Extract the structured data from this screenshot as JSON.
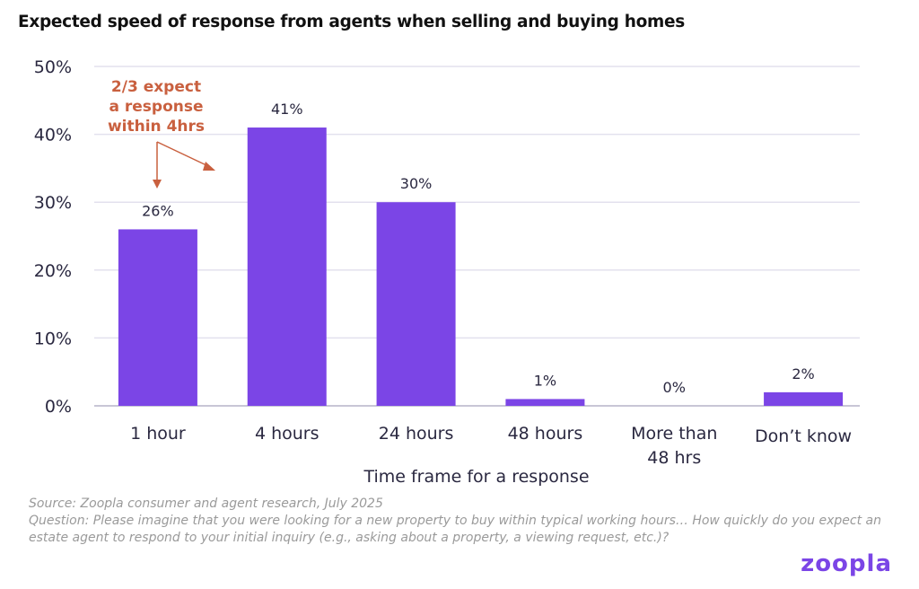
{
  "title": "Expected speed of response from agents when selling and buying homes",
  "chart_data": {
    "type": "bar",
    "title": "Expected speed of response from agents when selling and buying homes",
    "categories": [
      [
        "1 hour"
      ],
      [
        "4 hours"
      ],
      [
        "24 hours"
      ],
      [
        "48 hours"
      ],
      [
        "More than",
        "48 hrs"
      ],
      [
        "Don’t know"
      ]
    ],
    "values": [
      26,
      41,
      30,
      1,
      0,
      2
    ],
    "data_labels": [
      "26%",
      "41%",
      "30%",
      "1%",
      "0%",
      "2%"
    ],
    "xlabel": "Time frame for a response",
    "ylabel": "",
    "ylim": [
      0,
      50
    ],
    "yticks": [
      0,
      10,
      20,
      30,
      40,
      50
    ],
    "ytick_labels": [
      "0%",
      "10%",
      "20%",
      "30%",
      "40%",
      "50%"
    ],
    "grid": true,
    "bar_color": "#7b45e6",
    "annotation": {
      "lines": [
        "2/3 expect",
        "a response",
        "within 4hrs"
      ],
      "color": "#c9603f"
    }
  },
  "source": "Source:  Zoopla consumer and agent research, July 2025",
  "question": "Question:  Please imagine that you were looking for a new property to buy within typical working hours… How quickly do you expect an estate agent to respond to your initial inquiry (e.g., asking about a property, a viewing request, etc.)?",
  "logo": "ZOOPLA"
}
